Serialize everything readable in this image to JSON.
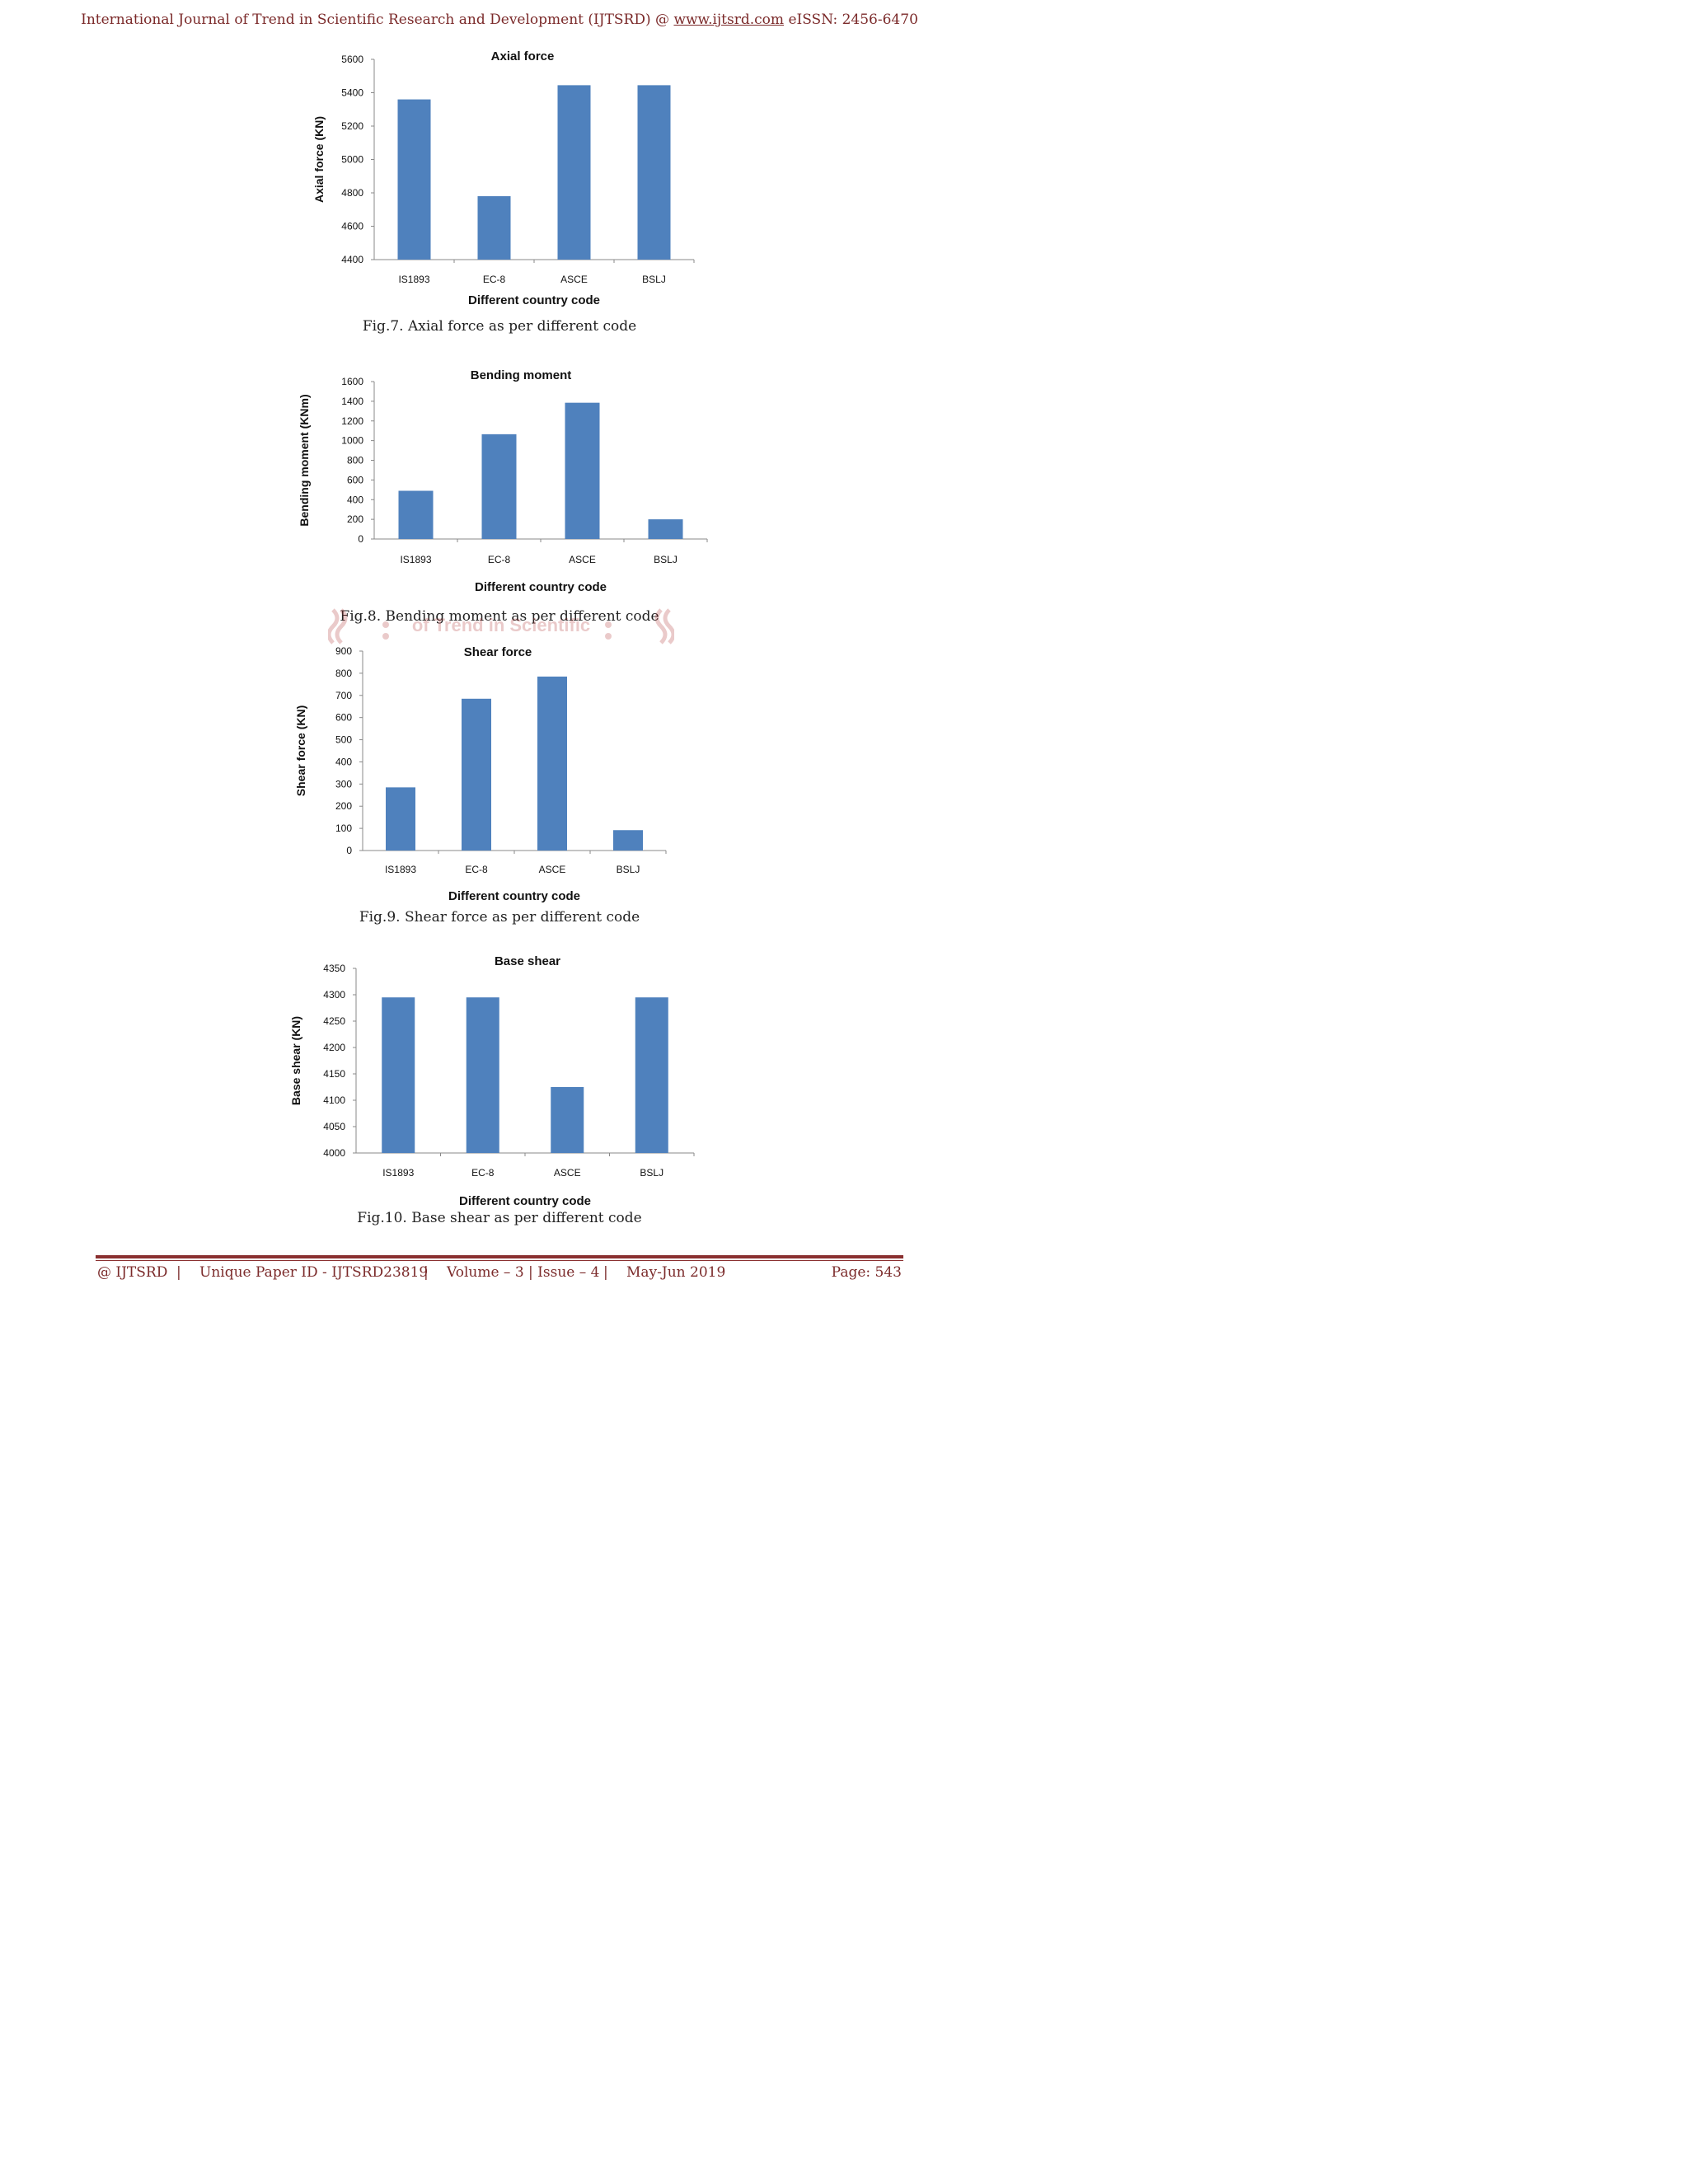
{
  "header": {
    "journal": "International Journal of Trend in Scientific Research and Development (IJTSRD) @",
    "url": "www.ijtsrd.com",
    "issn": "eISSN: 2456-6470"
  },
  "chart_data": [
    {
      "type": "bar",
      "title": "Axial force",
      "xlabel": "Different country code",
      "ylabel": "Axial force (KN)",
      "categories": [
        "IS1893",
        "EC-8",
        "ASCE",
        "BSLJ"
      ],
      "values": [
        5360,
        4780,
        5445,
        5445
      ],
      "ylim": [
        4400,
        5600
      ],
      "yticks": [
        4400,
        4600,
        4800,
        5000,
        5200,
        5400,
        5600
      ],
      "color": "#4f81bd",
      "caption": "Fig.7. Axial force as per different code"
    },
    {
      "type": "bar",
      "title": "Bending moment",
      "xlabel": "Different country code",
      "ylabel": "Bending moment (KNm)",
      "categories": [
        "IS1893",
        "EC-8",
        "ASCE",
        "BSLJ"
      ],
      "values": [
        490,
        1065,
        1385,
        200
      ],
      "ylim": [
        0,
        1600
      ],
      "yticks": [
        0,
        200,
        400,
        600,
        800,
        1000,
        1200,
        1400,
        1600
      ],
      "color": "#4f81bd",
      "caption": "Fig.8. Bending moment as per different code"
    },
    {
      "type": "bar",
      "title": "Shear force",
      "xlabel": "Different country code",
      "ylabel": "Shear force (KN)",
      "categories": [
        "IS1893",
        "EC-8",
        "ASCE",
        "BSLJ"
      ],
      "values": [
        285,
        685,
        785,
        92
      ],
      "ylim": [
        0,
        900
      ],
      "yticks": [
        0,
        100,
        200,
        300,
        400,
        500,
        600,
        700,
        800,
        900
      ],
      "color": "#4f81bd",
      "caption": "Fig.9. Shear force as per different code"
    },
    {
      "type": "bar",
      "title": "Base shear",
      "xlabel": "Different country code",
      "ylabel": "Base shear (KN)",
      "categories": [
        "IS1893",
        "EC-8",
        "ASCE",
        "BSLJ"
      ],
      "values": [
        4295,
        4295,
        4125,
        4295
      ],
      "ylim": [
        4000,
        4350
      ],
      "yticks": [
        4000,
        4050,
        4100,
        4150,
        4200,
        4250,
        4300,
        4350
      ],
      "color": "#4f81bd",
      "caption": "Fig.10. Base shear as per different code"
    }
  ],
  "watermark": {
    "text": "of Trend in Scientific"
  },
  "footer": {
    "left": "@ IJTSRD",
    "sep": "|",
    "paper_id": "Unique Paper ID - IJTSRD23819",
    "volume": "Volume – 3 | Issue – 4",
    "date": "May-Jun 2019",
    "page": "Page: 543"
  }
}
